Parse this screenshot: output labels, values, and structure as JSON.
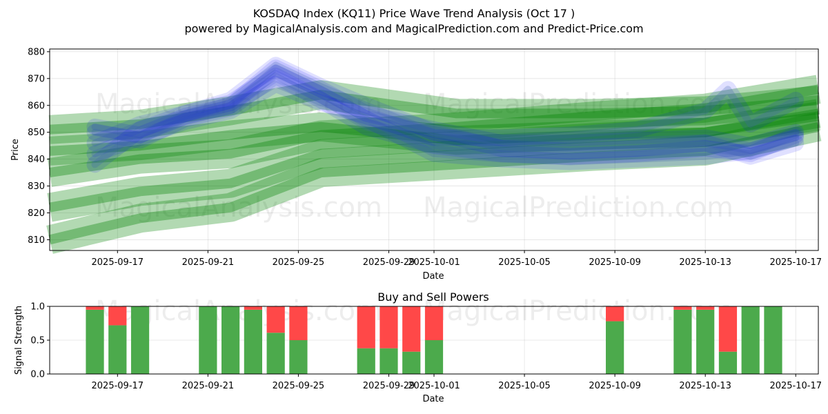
{
  "chart_data": [
    {
      "type": "line",
      "title": "KOSDAQ Index (KQ11) Price Wave Trend Analysis (Oct 17 )",
      "subtitle": "powered by MagicalAnalysis.com and MagicalPrediction.com and Predict-Price.com",
      "xlabel": "Date",
      "ylabel": "Price",
      "xlim": [
        "2025-09-14",
        "2025-10-18"
      ],
      "ylim": [
        806,
        881
      ],
      "yticks": [
        810,
        820,
        830,
        840,
        850,
        860,
        870,
        880
      ],
      "xticks": [
        "2025-09-17",
        "2025-09-21",
        "2025-09-25",
        "2025-09-29",
        "2025-10-01",
        "2025-10-05",
        "2025-10-09",
        "2025-10-13",
        "2025-10-17"
      ],
      "grid": true,
      "watermarks": [
        "MagicalAnalysis.com",
        "MagicalPrediction.com",
        "MagicalAnalysis.com",
        "MagicalPrediction.com"
      ],
      "series": [
        {
          "name": "wave-blue-1",
          "color": "#0000ff",
          "x": [
            "2025-09-16",
            "2025-09-18",
            "2025-09-20",
            "2025-09-22",
            "2025-09-24",
            "2025-09-26",
            "2025-09-28",
            "2025-10-01",
            "2025-10-04",
            "2025-10-07",
            "2025-10-10",
            "2025-10-13",
            "2025-10-15",
            "2025-10-17"
          ],
          "values": [
            852,
            849,
            856,
            860,
            874,
            866,
            857,
            851,
            846,
            846,
            847,
            848,
            845,
            850
          ]
        },
        {
          "name": "wave-blue-2",
          "color": "#0000ff",
          "x": [
            "2025-09-16",
            "2025-09-18",
            "2025-09-20",
            "2025-09-22",
            "2025-09-24",
            "2025-09-26",
            "2025-09-28",
            "2025-10-01",
            "2025-10-04",
            "2025-10-07",
            "2025-10-10",
            "2025-10-13",
            "2025-10-15",
            "2025-10-17"
          ],
          "values": [
            846,
            853,
            857,
            861,
            872,
            864,
            855,
            842,
            840,
            839,
            840,
            841,
            843,
            848
          ]
        },
        {
          "name": "wave-blue-3",
          "color": "#0000ff",
          "x": [
            "2025-09-16",
            "2025-09-18",
            "2025-09-20",
            "2025-09-22",
            "2025-09-24",
            "2025-09-26",
            "2025-09-28",
            "2025-10-01",
            "2025-10-04",
            "2025-10-07",
            "2025-10-10",
            "2025-10-13",
            "2025-10-15",
            "2025-10-17"
          ],
          "values": [
            850,
            847,
            855,
            859,
            871,
            862,
            852,
            845,
            842,
            841,
            842,
            844,
            842,
            849
          ]
        },
        {
          "name": "wave-blue-4",
          "color": "#0000ff",
          "x": [
            "2025-09-16",
            "2025-09-18",
            "2025-09-20",
            "2025-09-22",
            "2025-09-24",
            "2025-09-26",
            "2025-09-28",
            "2025-10-01",
            "2025-10-04",
            "2025-10-07",
            "2025-10-10",
            "2025-10-13",
            "2025-10-14",
            "2025-10-15",
            "2025-10-17"
          ],
          "values": [
            842,
            848,
            854,
            858,
            868,
            861,
            856,
            848,
            848,
            849,
            851,
            858,
            866,
            853,
            862
          ]
        },
        {
          "name": "wave-blue-5",
          "color": "#0000ff",
          "x": [
            "2025-09-16",
            "2025-09-18",
            "2025-09-20",
            "2025-09-22",
            "2025-09-24",
            "2025-09-26",
            "2025-09-28",
            "2025-10-01",
            "2025-10-04",
            "2025-10-07",
            "2025-10-10",
            "2025-10-13",
            "2025-10-15",
            "2025-10-17"
          ],
          "values": [
            838,
            851,
            857,
            862,
            875,
            867,
            860,
            850,
            844,
            843,
            844,
            846,
            841,
            846
          ]
        },
        {
          "name": "trend-green-1",
          "color": "#008000",
          "x": [
            "2025-09-14",
            "2025-09-18",
            "2025-09-22",
            "2025-09-26",
            "2025-10-02",
            "2025-10-08",
            "2025-10-13",
            "2025-10-18"
          ],
          "values": [
            851,
            853,
            858,
            864,
            857,
            857,
            858,
            862
          ]
        },
        {
          "name": "trend-green-2",
          "color": "#008000",
          "x": [
            "2025-09-14",
            "2025-09-18",
            "2025-09-22",
            "2025-09-26",
            "2025-10-02",
            "2025-10-08",
            "2025-10-13",
            "2025-10-18"
          ],
          "values": [
            835,
            840,
            842,
            849,
            852,
            856,
            859,
            866
          ]
        },
        {
          "name": "trend-green-3",
          "color": "#008000",
          "x": [
            "2025-09-14",
            "2025-09-18",
            "2025-09-22",
            "2025-09-26",
            "2025-10-02",
            "2025-10-08",
            "2025-10-13",
            "2025-10-18"
          ],
          "values": [
            822,
            828,
            831,
            842,
            845,
            848,
            850,
            857
          ]
        },
        {
          "name": "trend-green-4",
          "color": "#008000",
          "x": [
            "2025-09-14",
            "2025-09-18",
            "2025-09-22",
            "2025-09-26",
            "2025-10-02",
            "2025-10-08",
            "2025-10-13",
            "2025-10-18"
          ],
          "values": [
            810,
            818,
            822,
            835,
            838,
            841,
            843,
            852
          ]
        },
        {
          "name": "trend-green-5",
          "color": "#008000",
          "x": [
            "2025-09-14",
            "2025-09-18",
            "2025-09-22",
            "2025-09-26",
            "2025-10-02",
            "2025-10-08",
            "2025-10-13",
            "2025-10-18"
          ],
          "values": [
            843,
            845,
            849,
            852,
            847,
            849,
            850,
            856
          ]
        }
      ]
    },
    {
      "type": "bar",
      "title": "Buy and Sell Powers",
      "xlabel": "Date",
      "ylabel": "Signal Strength",
      "xlim": [
        "2025-09-14",
        "2025-10-18"
      ],
      "ylim": [
        0,
        1
      ],
      "yticks": [
        0.0,
        0.5,
        1.0
      ],
      "ytick_labels": [
        "0.0",
        "0.5",
        "1.0"
      ],
      "xticks": [
        "2025-09-17",
        "2025-09-21",
        "2025-09-25",
        "2025-09-29",
        "2025-10-01",
        "2025-10-05",
        "2025-10-09",
        "2025-10-13",
        "2025-10-17"
      ],
      "colors": {
        "buy": "#4caa4c",
        "sell": "#ff4848"
      },
      "categories": [
        "2025-09-16",
        "2025-09-17",
        "2025-09-18",
        "2025-09-21",
        "2025-09-22",
        "2025-09-23",
        "2025-09-24",
        "2025-09-25",
        "2025-09-28",
        "2025-09-29",
        "2025-09-30",
        "2025-10-01",
        "2025-10-09",
        "2025-10-12",
        "2025-10-13",
        "2025-10-14",
        "2025-10-15",
        "2025-10-16"
      ],
      "series": [
        {
          "name": "Buy",
          "values": [
            0.95,
            0.72,
            1.0,
            1.0,
            1.0,
            0.95,
            0.61,
            0.5,
            0.38,
            0.38,
            0.33,
            0.5,
            0.78,
            0.95,
            0.95,
            0.33,
            1.0,
            1.0
          ]
        },
        {
          "name": "Sell",
          "values": [
            0.05,
            0.28,
            0.0,
            0.0,
            0.0,
            0.05,
            0.39,
            0.5,
            0.62,
            0.62,
            0.67,
            0.5,
            0.22,
            0.05,
            0.05,
            0.67,
            0.0,
            0.0
          ]
        }
      ]
    }
  ]
}
